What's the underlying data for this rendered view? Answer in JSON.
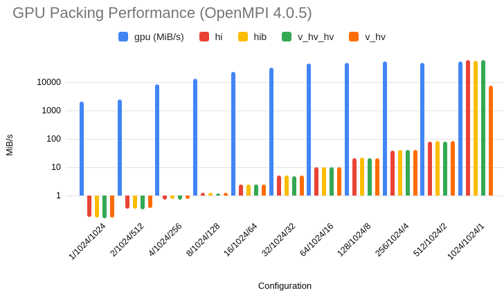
{
  "title": "GPU Packing Performance (OpenMPI 4.0.5)",
  "chart_data": {
    "type": "bar",
    "title": "GPU Packing Performance (OpenMPI 4.0.5)",
    "xlabel": "Configuration",
    "ylabel": "MiB/s",
    "y_scale": "log",
    "y_ticks": [
      "1",
      "10",
      "100",
      "1000",
      "10000"
    ],
    "ylim": [
      0.1,
      100000
    ],
    "grid": true,
    "legend_position": "top",
    "categories": [
      "1/1024/1024",
      "2/1024/512",
      "4/1024/256",
      "8/1024/128",
      "16/1024/64",
      "32/1024/32",
      "64/1024/16",
      "128/1024/8",
      "256/1024/4",
      "512/1024/2",
      "1024/1024/1"
    ],
    "series": [
      {
        "name": "gpu (MiB/s)",
        "color": "#4285F4",
        "values": [
          2100,
          2450,
          8500,
          13000,
          23000,
          33000,
          46000,
          49000,
          53000,
          48000,
          55000
        ]
      },
      {
        "name": "hi",
        "color": "#EA4335",
        "values": [
          0.18,
          0.34,
          0.72,
          1.25,
          2.4,
          5.0,
          10,
          21,
          38,
          78,
          59000
        ]
      },
      {
        "name": "hib",
        "color": "#FBBC04",
        "values": [
          0.17,
          0.34,
          0.75,
          1.25,
          2.4,
          5.0,
          10,
          22,
          40,
          85,
          57000
        ]
      },
      {
        "name": "v_hv_hv",
        "color": "#34A853",
        "values": [
          0.16,
          0.33,
          0.72,
          1.2,
          2.4,
          4.8,
          10,
          21,
          41,
          82,
          62000
        ]
      },
      {
        "name": "v_hv",
        "color": "#FF6D01",
        "values": [
          0.17,
          0.36,
          0.75,
          1.25,
          2.4,
          5.0,
          10,
          21,
          40,
          85,
          7400
        ]
      }
    ]
  }
}
